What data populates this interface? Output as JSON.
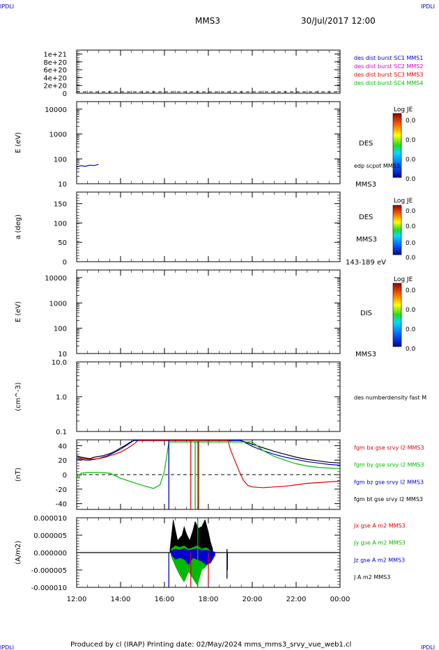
{
  "header": {
    "corner_left": "IPDLI",
    "corner_right": "IPDLI",
    "spacecraft": "MMS3",
    "datetime": "30/Jul/2017 12:00",
    "footer_corner_left": "IPDLI",
    "footer_corner_right": "IPDLI"
  },
  "footer": {
    "text": "Produced by cl (IRAP)   Printing date: 02/May/2024   mms_mms3_srvy_vue_web1.cl"
  },
  "colors": {
    "black": "#000000",
    "blue": "#0000cc",
    "magenta": "#cc00cc",
    "red": "#dd0000",
    "green": "#00bb00"
  },
  "x_axis": {
    "range_hours": [
      12,
      24
    ],
    "tick_labels": [
      "12:00",
      "14:00",
      "16:00",
      "18:00",
      "20:00",
      "22:00",
      "00:00"
    ],
    "tick_values": [
      12,
      14,
      16,
      18,
      20,
      22,
      24
    ]
  },
  "chart_data": [
    {
      "type": "line",
      "panel": "distribution",
      "ylabel": "",
      "ylim": [
        0,
        1.1e+21
      ],
      "ytick_labels": [
        "1e+21",
        "8e+20",
        "6e+20",
        "4e+20",
        "2e+20",
        "0"
      ],
      "ytick_values": [
        1e+21,
        8e+20,
        6e+20,
        4e+20,
        2e+20,
        0
      ],
      "legend": [
        {
          "text": "des dist burst SC1 MMS1",
          "color": "#0000cc"
        },
        {
          "text": "des dist burst SC2 MMS2",
          "color": "#cc00cc"
        },
        {
          "text": "des dist burst SC3 MMS3",
          "color": "#dd0000"
        },
        {
          "text": "des dist burst SC4 MMS4",
          "color": "#00bb00"
        }
      ],
      "series": []
    },
    {
      "type": "heatmap",
      "panel": "des_energy",
      "ylabel": "E (eV)",
      "scale": "log",
      "ylim": [
        10,
        20000
      ],
      "ytick_labels": [
        "10000",
        "1000",
        "100",
        "10"
      ],
      "ytick_values": [
        10000,
        1000,
        100,
        10
      ],
      "labels": [
        "DES",
        "edp scpot MMS3",
        "MMS3"
      ],
      "colorbar": {
        "title": "Log JE",
        "ticks": [
          "0.0",
          "0.0",
          "0.0",
          "0.0"
        ]
      },
      "series": [
        {
          "x": [
            12.0,
            12.2,
            12.4,
            12.6,
            12.8,
            13.0
          ],
          "y": [
            47,
            53,
            50,
            56,
            54,
            60
          ]
        }
      ]
    },
    {
      "type": "heatmap",
      "panel": "des_pitch",
      "ylabel": "a (deg)",
      "ylim": [
        0,
        180
      ],
      "ytick_labels": [
        "150",
        "100",
        "50",
        "0"
      ],
      "ytick_values": [
        150,
        100,
        50,
        0
      ],
      "labels": [
        "DES",
        "MMS3",
        "143-189 eV"
      ],
      "colorbar": {
        "title": "Log JE",
        "ticks": [
          "0.0",
          "0.0",
          "0.0",
          "0.0"
        ]
      }
    },
    {
      "type": "heatmap",
      "panel": "dis_energy",
      "ylabel": "E (eV)",
      "scale": "log",
      "ylim": [
        10,
        20000
      ],
      "ytick_labels": [
        "10000",
        "1000",
        "100",
        "10"
      ],
      "ytick_values": [
        10000,
        1000,
        100,
        10
      ],
      "labels": [
        "DIS",
        "MMS3"
      ],
      "colorbar": {
        "title": "Log JE",
        "ticks": [
          "0.0",
          "0.0",
          "0.0",
          "0.0"
        ]
      }
    },
    {
      "type": "line",
      "panel": "density",
      "ylabel": "(cm^-3)",
      "scale": "log",
      "ylim": [
        0.1,
        10
      ],
      "ytick_labels": [
        "10.0",
        "1.0",
        "0.1"
      ],
      "ytick_values": [
        10,
        1,
        0.1
      ],
      "legend": [
        {
          "text": "des numberdensity fast M",
          "color": "#000000"
        }
      ],
      "series": []
    },
    {
      "type": "line",
      "panel": "fgm",
      "ylabel": "(nT)",
      "ylim": [
        -48,
        48
      ],
      "ytick_labels": [
        "40",
        "20",
        "0",
        "-20",
        "-40"
      ],
      "ytick_values": [
        40,
        20,
        0,
        -20,
        -40
      ],
      "legend": [
        {
          "text": "fgm bx gse srvy l2 MMS3",
          "color": "#dd0000"
        },
        {
          "text": "fgm by gse srvy l2 MMS3",
          "color": "#00bb00"
        },
        {
          "text": "fgm bz gse srvy l2 MMS3",
          "color": "#0000cc"
        },
        {
          "text": "fgm bt gse srvy l2 MMS3",
          "color": "#000000"
        }
      ],
      "series": [
        {
          "name": "fgm bt gse srvy l2 MMS3",
          "color": "#000000",
          "x": [
            12.0,
            12.2,
            12.4,
            12.6,
            12.8,
            13.0,
            13.2,
            13.4,
            13.6,
            13.8,
            14.0,
            14.2,
            14.4,
            14.6,
            14.8,
            19.3,
            19.6,
            20.0,
            20.5,
            21.0,
            21.5,
            22.0,
            22.5,
            23.0,
            23.5,
            24.0
          ],
          "y": [
            26,
            24,
            23,
            22,
            24,
            25,
            26,
            28,
            30,
            33,
            37,
            40,
            44,
            47,
            48,
            48,
            46,
            42,
            37,
            32,
            28,
            24,
            21,
            19,
            17,
            16
          ]
        },
        {
          "name": "fgm bz gse srvy l2 MMS3",
          "color": "#0000cc",
          "x": [
            12.0,
            12.2,
            12.4,
            12.6,
            12.8,
            13.0,
            13.2,
            13.4,
            13.6,
            13.8,
            14.0,
            14.2,
            14.4,
            14.6,
            19.5,
            20.0,
            20.5,
            21.0,
            21.5,
            22.0,
            22.5,
            23.0,
            23.5,
            24.0
          ],
          "y": [
            22,
            21,
            20,
            20,
            21,
            22,
            24,
            26,
            29,
            32,
            35,
            39,
            43,
            47,
            47,
            39,
            33,
            28,
            24,
            21,
            18,
            16,
            14,
            13
          ]
        },
        {
          "name": "fgm bx gse srvy l2 MMS3",
          "color": "#dd0000",
          "x": [
            12.0,
            12.3,
            12.6,
            13.0,
            13.3,
            13.6,
            14.0,
            14.3,
            14.6,
            14.8,
            18.9,
            19.0,
            19.2,
            19.4,
            19.6,
            19.8,
            20.0,
            20.5,
            21.0,
            21.5,
            22.0,
            22.5,
            23.0,
            23.5,
            24.0
          ],
          "y": [
            24,
            22,
            21,
            22,
            24,
            27,
            31,
            36,
            42,
            47,
            47,
            35,
            20,
            5,
            -8,
            -15,
            -17,
            -18,
            -17,
            -16,
            -14,
            -12,
            -11,
            -10,
            -9
          ]
        },
        {
          "name": "fgm by gse srvy l2 MMS3",
          "color": "#00bb00",
          "x": [
            12.0,
            12.1,
            12.2,
            12.5,
            13.0,
            13.5,
            14.0,
            14.5,
            15.0,
            15.5,
            15.8,
            16.0,
            16.2,
            20.0,
            20.5,
            21.0,
            21.5,
            22.0,
            22.5,
            23.0,
            23.5,
            24.0
          ],
          "y": [
            2,
            -5,
            2,
            3,
            3,
            2,
            -5,
            -10,
            -15,
            -19,
            -14,
            5,
            45,
            45,
            33,
            25,
            20,
            15,
            12,
            10,
            9,
            8
          ]
        }
      ],
      "spikes": [
        {
          "x": 16.2,
          "y_from": -48,
          "y_to": 48,
          "color": "#0000cc"
        },
        {
          "x": 17.2,
          "y_from": -48,
          "y_to": 48,
          "color": "#dd0000"
        },
        {
          "x": 17.4,
          "y_from": -48,
          "y_to": 48,
          "color": "#00bb00"
        },
        {
          "x": 17.52,
          "y_from": -48,
          "y_to": 48,
          "color": "#00bb00"
        },
        {
          "x": 17.56,
          "y_from": -48,
          "y_to": 48,
          "color": "#dd0000"
        }
      ]
    },
    {
      "type": "line",
      "panel": "current",
      "ylabel": "(A/m2)",
      "ylim": [
        -1e-05,
        1e-05
      ],
      "ytick_labels": [
        "0.000010",
        "0.000005",
        "0.000000",
        "-0.000005",
        "-0.000010"
      ],
      "ytick_values": [
        1e-05,
        5e-06,
        0,
        -5e-06,
        -1e-05
      ],
      "legend": [
        {
          "text": "Jx gse A m2 MMS3",
          "color": "#dd0000"
        },
        {
          "text": "Jy gse A m2 MMS3",
          "color": "#00bb00"
        },
        {
          "text": "Jz gse A m2 MMS3",
          "color": "#0000cc"
        },
        {
          "text": "J A m2 MMS3",
          "color": "#000000"
        }
      ],
      "bursts": [
        {
          "color": "#000000",
          "x": [
            16.25,
            16.4,
            16.6,
            16.8,
            16.9,
            17.0,
            17.15,
            17.3,
            17.4,
            17.55,
            17.7,
            17.85,
            18.0,
            18.1,
            18.2
          ],
          "y_hi": [
            1e-06,
            9.5e-06,
            3.5e-06,
            5e-06,
            7.5e-06,
            5.5e-06,
            3.5e-06,
            6.5e-06,
            9e-06,
            7e-06,
            7.5e-06,
            9.5e-06,
            6e-06,
            3e-06,
            1e-06
          ],
          "y_lo": [
            0,
            0,
            0,
            0,
            0,
            0,
            0,
            0,
            0,
            0,
            0,
            0,
            0,
            0,
            0
          ]
        },
        {
          "color": "#00bb00",
          "x": [
            16.3,
            16.5,
            16.7,
            16.9,
            17.1,
            17.3,
            17.5,
            17.7,
            17.9,
            18.1
          ],
          "y_hi": [
            1e-06,
            2e-06,
            1.5e-06,
            2e-06,
            1e-06,
            1.5e-06,
            2e-06,
            1e-06,
            1.5e-06,
            5e-07
          ],
          "y_lo": [
            -1e-06,
            -4e-06,
            -6.5e-06,
            -8.5e-06,
            -5.5e-06,
            -7.5e-06,
            -9.5e-06,
            -5e-06,
            -4e-06,
            -2e-06
          ]
        },
        {
          "color": "#0000cc",
          "x": [
            16.3,
            16.5,
            16.7,
            16.9,
            17.1,
            17.3,
            17.5,
            17.7,
            17.9,
            18.1,
            18.3
          ],
          "y_hi": [
            5e-07,
            1e-06,
            8e-07,
            1.2e-06,
            6e-07,
            9e-07,
            1.2e-06,
            6e-07,
            7e-07,
            4e-07,
            2e-07
          ],
          "y_lo": [
            -5e-07,
            -2e-06,
            -1.5e-06,
            -2e-06,
            -3.5e-06,
            -1.5e-06,
            -2e-06,
            -2.5e-06,
            -3.5e-06,
            -3e-06,
            -8e-07
          ]
        }
      ],
      "spikes": [
        {
          "x": 16.2,
          "y_from": -1e-05,
          "y_to": 0,
          "color": "#0000cc"
        },
        {
          "x": 17.2,
          "y_from": -1e-05,
          "y_to": 0,
          "color": "#dd0000"
        },
        {
          "x": 17.52,
          "y_from": -1e-05,
          "y_to": 1e-05,
          "color": "#00bb00"
        },
        {
          "x": 18.0,
          "y_from": -9e-06,
          "y_to": 0,
          "color": "#dd0000"
        },
        {
          "x": 18.85,
          "y_from": -7.5e-06,
          "y_to": 1e-06,
          "color": "#000000"
        },
        {
          "x": 18.87,
          "y_from": -5e-06,
          "y_to": 0,
          "color": "#0000cc"
        }
      ]
    }
  ]
}
